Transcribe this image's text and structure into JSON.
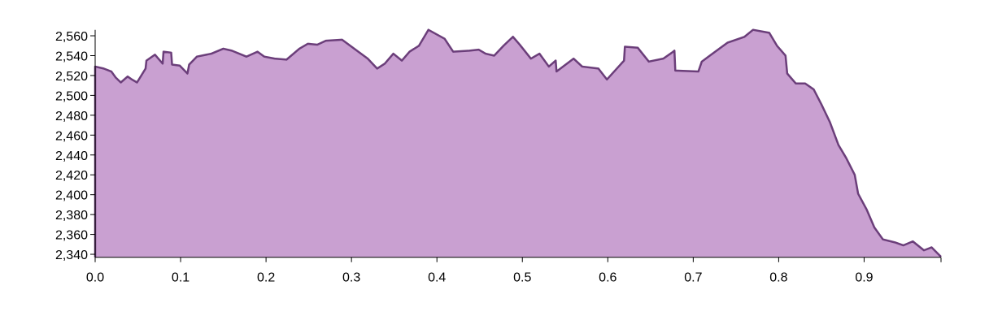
{
  "chart_data": {
    "type": "area",
    "x": [
      0,
      0.01,
      0.019,
      0.024,
      0.03,
      0.038,
      0.043,
      0.049,
      0.059,
      0.06,
      0.07,
      0.079,
      0.08,
      0.089,
      0.09,
      0.099,
      0.108,
      0.11,
      0.119,
      0.136,
      0.15,
      0.16,
      0.177,
      0.19,
      0.198,
      0.21,
      0.224,
      0.239,
      0.249,
      0.26,
      0.27,
      0.289,
      0.308,
      0.319,
      0.33,
      0.339,
      0.349,
      0.359,
      0.368,
      0.379,
      0.39,
      0.409,
      0.419,
      0.438,
      0.449,
      0.457,
      0.467,
      0.478,
      0.489,
      0.497,
      0.51,
      0.52,
      0.531,
      0.539,
      0.54,
      0.56,
      0.57,
      0.589,
      0.599,
      0.619,
      0.62,
      0.635,
      0.648,
      0.665,
      0.675,
      0.678,
      0.679,
      0.706,
      0.71,
      0.721,
      0.74,
      0.76,
      0.77,
      0.789,
      0.798,
      0.808,
      0.81,
      0.82,
      0.831,
      0.841,
      0.85,
      0.86,
      0.87,
      0.879,
      0.889,
      0.893,
      0.903,
      0.912,
      0.922,
      0.936,
      0.946,
      0.957,
      0.97,
      0.979,
      0.99
    ],
    "values": [
      2529,
      2527,
      2524,
      2518,
      2513,
      2519,
      2516,
      2513,
      2527,
      2535,
      2541,
      2532,
      2544,
      2543,
      2531,
      2530,
      2522,
      2531,
      2539,
      2542,
      2547,
      2545,
      2539,
      2544,
      2539,
      2537,
      2536,
      2547,
      2552,
      2551,
      2555,
      2556,
      2544,
      2537,
      2527,
      2532,
      2542,
      2535,
      2544,
      2550,
      2566,
      2557,
      2544,
      2545,
      2546,
      2542,
      2540,
      2550,
      2559,
      2551,
      2537,
      2542,
      2529,
      2535,
      2524,
      2537,
      2529,
      2527,
      2516,
      2535,
      2549,
      2548,
      2534,
      2537,
      2543,
      2545,
      2525,
      2524,
      2534,
      2541,
      2553,
      2559,
      2566,
      2563,
      2550,
      2540,
      2522,
      2512,
      2512,
      2506,
      2491,
      2473,
      2450,
      2437,
      2420,
      2401,
      2385,
      2367,
      2355,
      2352,
      2349,
      2353,
      2344,
      2347,
      2337.5
    ],
    "color": "#c9a0d1",
    "line_color": "#6b3e7a",
    "xlim": [
      0,
      0.99
    ],
    "ylim": [
      2337,
      2566
    ],
    "xticks": [
      {
        "value": 0,
        "label": "0.0"
      },
      0.1,
      0.2,
      0.3,
      0.4,
      0.5,
      0.6,
      0.7,
      0.8,
      0.9
    ],
    "yticks": [
      {
        "value": 2340,
        "label": "2,340"
      },
      {
        "value": 2360,
        "label": "2,360"
      },
      {
        "value": 2380,
        "label": "2,380"
      },
      {
        "value": 2400,
        "label": "2,400"
      },
      {
        "value": 2420,
        "label": "2,420"
      },
      {
        "value": 2440,
        "label": "2,440"
      },
      {
        "value": 2460,
        "label": "2,460"
      },
      {
        "value": 2480,
        "label": "2,480"
      },
      {
        "value": 2500,
        "label": "2,500"
      },
      {
        "value": 2520,
        "label": "2,520"
      },
      {
        "value": 2540,
        "label": "2,540"
      },
      {
        "value": 2560,
        "label": "2,560"
      }
    ]
  }
}
